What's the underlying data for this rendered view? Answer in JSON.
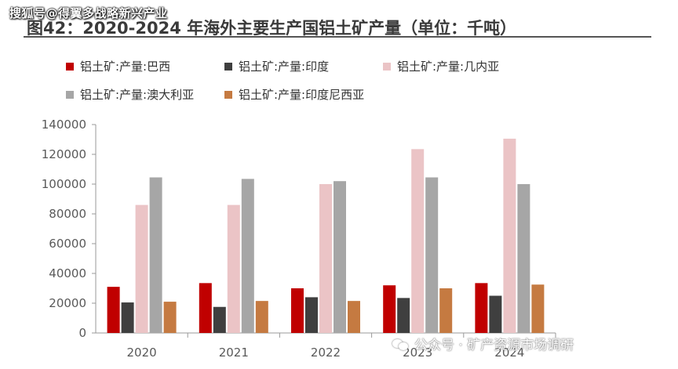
{
  "watermark_top": "搜狐号@得翼多战略新兴产业",
  "title": "图42：2020-2024 年海外主要生产国铝土矿产量（单位：千吨）",
  "watermark_bottom": "公众号 · 矿产资源市场调研",
  "colors": {
    "brazil": "#c00000",
    "india": "#3f3f3f",
    "guinea": "#ebc4c6",
    "australia": "#a6a6a6",
    "indonesia": "#c57a41"
  },
  "chart_data": {
    "type": "bar",
    "title": "图42：2020-2024 年海外主要生产国铝土矿产量（单位：千吨）",
    "categories": [
      "2020",
      "2021",
      "2022",
      "2023",
      "2024"
    ],
    "ylim": [
      0,
      140000
    ],
    "yticks": [
      "0",
      "20000",
      "40000",
      "60000",
      "80000",
      "100000",
      "120000",
      "140000"
    ],
    "grid": false,
    "legend_position": "top",
    "series": [
      {
        "name": "铝土矿:产量:巴西",
        "color_key": "brazil",
        "values": [
          31000,
          33500,
          30000,
          32000,
          33500
        ]
      },
      {
        "name": "铝土矿:产量:印度",
        "color_key": "india",
        "values": [
          20500,
          17500,
          24000,
          23500,
          25000
        ]
      },
      {
        "name": "铝土矿:产量:几内亚",
        "color_key": "guinea",
        "values": [
          86000,
          86000,
          100000,
          123500,
          130500
        ]
      },
      {
        "name": "铝土矿:产量:澳大利亚",
        "color_key": "australia",
        "values": [
          104500,
          103500,
          102000,
          104500,
          100000
        ]
      },
      {
        "name": "铝土矿:产量:印度尼西亚",
        "color_key": "indonesia",
        "values": [
          21000,
          21500,
          21500,
          30000,
          32500
        ]
      }
    ]
  }
}
